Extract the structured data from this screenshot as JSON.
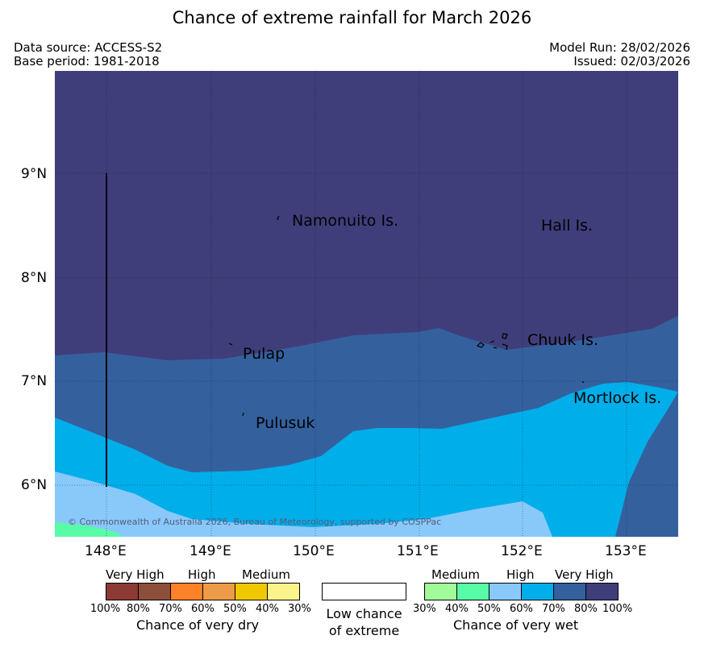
{
  "title": "Chance of extreme rainfall for March 2026",
  "header": {
    "data_source": "Data source: ACCESS-S2",
    "base_period": "Base period: 1981-2018",
    "model_run": "Model Run: 28/02/2026",
    "issued": "Issued: 02/03/2026"
  },
  "map": {
    "lat_labels": [
      "9°N",
      "8°N",
      "7°N",
      "6°N"
    ],
    "lon_labels": [
      "148°E",
      "149°E",
      "150°E",
      "151°E",
      "152°E",
      "153°E"
    ],
    "places": {
      "namonuito": "Namonuito Is.",
      "hall": "Hall Is.",
      "pulap": "Pulap",
      "chuuk": "Chuuk Is.",
      "mortlock": "Mortlock Is.",
      "pulusuk": "Pulusuk"
    },
    "copyright": "© Commonwealth of Australia 2026, Bureau of Meteorology, supported by COSPPac",
    "zone_colors": {
      "very_high_wet": "#3f3e7b",
      "high_wet_80": "#34619e",
      "high_wet_60": "#00aeea",
      "medium_wet": "#89c9fa",
      "medium_wet_40": "#58fba6"
    }
  },
  "legend": {
    "dry": {
      "groups": [
        "Very High",
        "High",
        "Medium"
      ],
      "ticks": [
        "100%",
        "80%",
        "70%",
        "60%",
        "50%",
        "40%",
        "30%"
      ],
      "colors": [
        "#8c3a35",
        "#8c503a",
        "#fc8127",
        "#ee9b48",
        "#f0c800",
        "#fbf48a"
      ],
      "title": "Chance of very dry"
    },
    "low": {
      "line1": "Low chance",
      "line2": "of extreme"
    },
    "wet": {
      "groups": [
        "Medium",
        "High",
        "Very High"
      ],
      "ticks": [
        "30%",
        "40%",
        "50%",
        "60%",
        "70%",
        "80%",
        "100%"
      ],
      "colors": [
        "#a2fb9a",
        "#58fba6",
        "#89c9fa",
        "#00aeea",
        "#34619e",
        "#3f3e7b"
      ],
      "title": "Chance of very wet"
    }
  }
}
